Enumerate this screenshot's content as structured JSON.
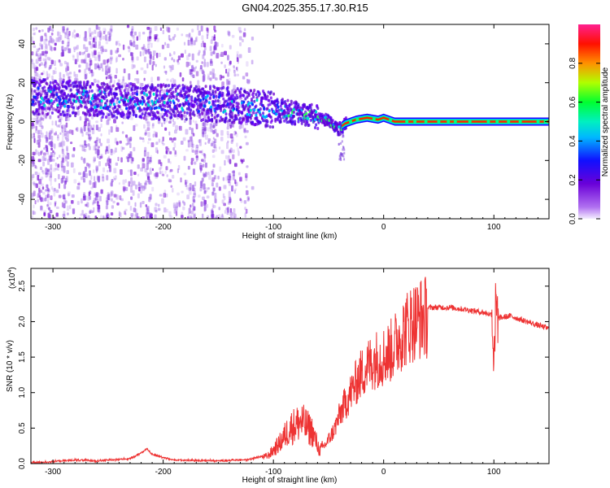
{
  "title": "GN04.2025.355.17.30.R15",
  "chart_data": [
    {
      "type": "heatmap",
      "name": "spectrogram",
      "xlabel": "Height of straight line (km)",
      "ylabel": "Frequency (Hz)",
      "xlim": [
        -320,
        150
      ],
      "ylim": [
        -50,
        50
      ],
      "xticks": [
        -300,
        -200,
        -100,
        0,
        100
      ],
      "xtick_labels": [
        "-300",
        "-200",
        "-100",
        "0",
        "100"
      ],
      "yticks": [
        -40,
        -20,
        0,
        20,
        40
      ],
      "ytick_labels": [
        "-40",
        "-20",
        "0",
        "20",
        "40"
      ],
      "centerline": {
        "description_points_height_km": [
          -320,
          -250,
          -200,
          -150,
          -100,
          -75,
          -60,
          -50,
          -42,
          -35,
          -25,
          -15,
          -5,
          0,
          10,
          150
        ],
        "frequency_hz": [
          13,
          11,
          10,
          9,
          6,
          4,
          2,
          0,
          -4,
          -1,
          1,
          2,
          1,
          2,
          0,
          0
        ]
      },
      "colorbar": {
        "label": "Normalized spectral amplitude",
        "range": [
          0.0,
          1.0
        ],
        "ticks": [
          0.0,
          0.2,
          0.4,
          0.6,
          0.8
        ],
        "tick_labels": [
          "0.0",
          "0.2",
          "0.4",
          "0.6",
          "0.8"
        ],
        "colors": [
          "#f0e8ff",
          "#7a00d0",
          "#2010ff",
          "#00d8ff",
          "#00ff40",
          "#c8ff00",
          "#ff8000",
          "#ff1000",
          "#ff20a0"
        ]
      }
    },
    {
      "type": "line",
      "name": "snr",
      "xlabel": "Height of straight line (km)",
      "ylabel": "SNR (10 * v/v)",
      "multiplier_label": "(x10",
      "multiplier_exp": "4",
      "xlim": [
        -320,
        150
      ],
      "ylim": [
        0,
        2.75
      ],
      "xticks": [
        -300,
        -200,
        -100,
        0,
        100
      ],
      "xtick_labels": [
        "-300",
        "-200",
        "-100",
        "0",
        "100"
      ],
      "yticks": [
        0.0,
        0.5,
        1.0,
        1.5,
        2.0,
        2.5
      ],
      "ytick_labels": [
        "0.0",
        "0.5",
        "1.0",
        "1.5",
        "2.0",
        "2.5"
      ],
      "color": "#ee3333",
      "envelope": {
        "x": [
          -320,
          -280,
          -260,
          -230,
          -220,
          -215,
          -210,
          -190,
          -150,
          -120,
          -105,
          -95,
          -85,
          -75,
          -65,
          -58,
          -52,
          -45,
          -38,
          -30,
          -22,
          -15,
          -8,
          0,
          8,
          15,
          25,
          35,
          45,
          60,
          75,
          90,
          98,
          100,
          102,
          104,
          115,
          130,
          150
        ],
        "y": [
          0.0,
          0.04,
          0.03,
          0.06,
          0.14,
          0.2,
          0.12,
          0.04,
          0.03,
          0.05,
          0.12,
          0.3,
          0.55,
          0.65,
          0.5,
          0.2,
          0.3,
          0.5,
          0.8,
          1.05,
          1.3,
          1.45,
          1.55,
          1.6,
          1.7,
          1.9,
          2.1,
          2.18,
          2.2,
          2.2,
          2.17,
          2.13,
          2.1,
          1.6,
          2.3,
          2.05,
          2.08,
          2.0,
          1.9
        ]
      }
    }
  ]
}
